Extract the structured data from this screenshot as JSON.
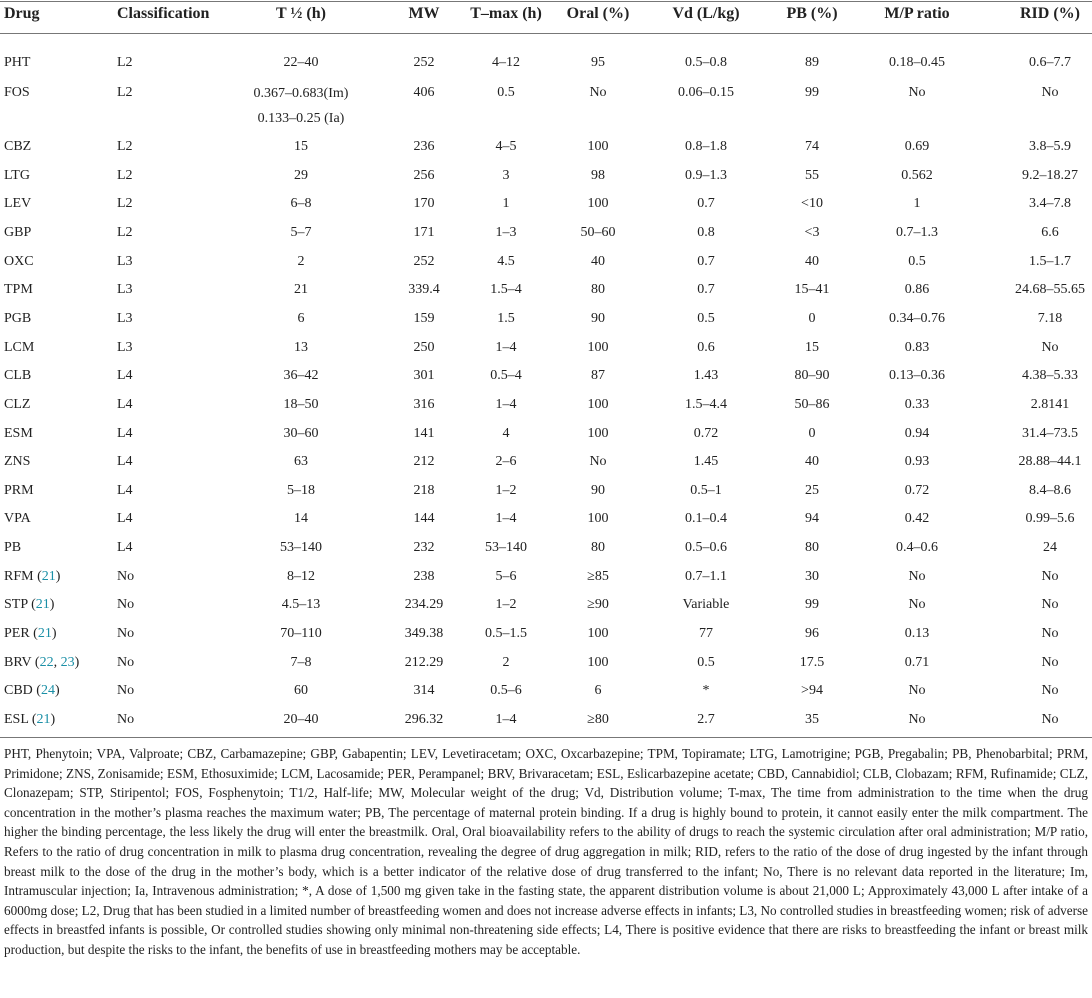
{
  "table": {
    "header": [
      "Drug",
      "Classification",
      "T ½ (h)",
      "MW",
      "T–max (h)",
      "Oral (%)",
      "Vd (L/kg)",
      "PB (%)",
      "M/P ratio",
      "RID (%)"
    ],
    "rows": [
      [
        "PHT",
        "L2",
        "22–40",
        "252",
        "4–12",
        "95",
        "0.5–0.8",
        "89",
        "0.18–0.45",
        "0.6–7.7"
      ],
      [
        "FOS",
        "L2",
        {
          "lines": [
            "0.367–0.683(Im)",
            "0.133–0.25 (Ia)"
          ]
        },
        "406",
        "0.5",
        "No",
        "0.06–0.15",
        "99",
        "No",
        "No"
      ],
      [
        "CBZ",
        "L2",
        "15",
        "236",
        "4–5",
        "100",
        "0.8–1.8",
        "74",
        "0.69",
        "3.8–5.9"
      ],
      [
        "LTG",
        "L2",
        "29",
        "256",
        "3",
        "98",
        "0.9–1.3",
        "55",
        "0.562",
        "9.2–18.27"
      ],
      [
        "LEV",
        "L2",
        "6–8",
        "170",
        "1",
        "100",
        "0.7",
        "<10",
        "1",
        "3.4–7.8"
      ],
      [
        "GBP",
        "L2",
        "5–7",
        "171",
        "1–3",
        "50–60",
        "0.8",
        "<3",
        "0.7–1.3",
        "6.6"
      ],
      [
        "OXC",
        "L3",
        "2",
        "252",
        "4.5",
        "40",
        "0.7",
        "40",
        "0.5",
        "1.5–1.7"
      ],
      [
        "TPM",
        "L3",
        "21",
        "339.4",
        "1.5–4",
        "80",
        "0.7",
        "15–41",
        "0.86",
        "24.68–55.65"
      ],
      [
        "PGB",
        "L3",
        "6",
        "159",
        "1.5",
        "90",
        "0.5",
        "0",
        "0.34–0.76",
        "7.18"
      ],
      [
        "LCM",
        "L3",
        "13",
        "250",
        "1–4",
        "100",
        "0.6",
        "15",
        "0.83",
        "No"
      ],
      [
        "CLB",
        "L4",
        "36–42",
        "301",
        "0.5–4",
        "87",
        "1.43",
        "80–90",
        "0.13–0.36",
        "4.38–5.33"
      ],
      [
        "CLZ",
        "L4",
        "18–50",
        "316",
        "1–4",
        "100",
        "1.5–4.4",
        "50–86",
        "0.33",
        "2.8141"
      ],
      [
        "ESM",
        "L4",
        "30–60",
        "141",
        "4",
        "100",
        "0.72",
        "0",
        "0.94",
        "31.4–73.5"
      ],
      [
        "ZNS",
        "L4",
        "63",
        "212",
        "2–6",
        "No",
        "1.45",
        "40",
        "0.93",
        "28.88–44.1"
      ],
      [
        "PRM",
        "L4",
        "5–18",
        "218",
        "1–2",
        "90",
        "0.5–1",
        "25",
        "0.72",
        "8.4–8.6"
      ],
      [
        "VPA",
        "L4",
        "14",
        "144",
        "1–4",
        "100",
        "0.1–0.4",
        "94",
        "0.42",
        "0.99–5.6"
      ],
      [
        "PB",
        "L4",
        "53–140",
        "232",
        "53–140",
        "80",
        "0.5–0.6",
        "80",
        "0.4–0.6",
        "24"
      ],
      [
        {
          "parts": [
            "RFM (",
            "21",
            ")"
          ]
        },
        "No",
        "8–12",
        "238",
        "5–6",
        "≥85",
        "0.7–1.1",
        "30",
        "No",
        "No"
      ],
      [
        {
          "parts": [
            "STP (",
            "21",
            ")"
          ]
        },
        "No",
        "4.5–13",
        "234.29",
        "1–2",
        "≥90",
        "Variable",
        "99",
        "No",
        "No"
      ],
      [
        {
          "parts": [
            "PER (",
            "21",
            ")"
          ]
        },
        "No",
        "70–110",
        "349.38",
        "0.5–1.5",
        "100",
        "77",
        "96",
        "0.13",
        "No"
      ],
      [
        {
          "parts": [
            "BRV (",
            "22",
            ", ",
            "23",
            ")"
          ]
        },
        "No",
        "7–8",
        "212.29",
        "2",
        "100",
        "0.5",
        "17.5",
        "0.71",
        "No"
      ],
      [
        {
          "parts": [
            "CBD (",
            "24",
            ")"
          ]
        },
        "No",
        "60",
        "314",
        "0.5–6",
        "6",
        "*",
        ">94",
        "No",
        "No"
      ],
      [
        {
          "parts": [
            "ESL (",
            "21",
            ")"
          ]
        },
        "No",
        "20–40",
        "296.32",
        "1–4",
        "≥80",
        "2.7",
        "35",
        "No",
        "No"
      ]
    ],
    "footnote": "PHT, Phenytoin; VPA, Valproate; CBZ, Carbamazepine; GBP, Gabapentin; LEV, Levetiracetam; OXC, Oxcarbazepine; TPM, Topiramate; LTG, Lamotrigine; PGB, Pregabalin; PB, Phenobarbital; PRM, Primidone; ZNS, Zonisamide; ESM, Ethosuximide; LCM, Lacosamide; PER, Perampanel; BRV, Brivaracetam; ESL, Eslicarbazepine acetate; CBD, Cannabidiol; CLB, Clobazam; RFM, Rufinamide; CLZ, Clonazepam; STP, Stiripentol; FOS, Fosphenytoin; T1/2, Half-life; MW, Molecular weight of the drug; Vd, Distribution volume; T-max, The time from administration to the time when the drug concentration in the mother’s plasma reaches the maximum water; PB, The percentage of maternal protein binding. If a drug is highly bound to protein, it cannot easily enter the milk compartment. The higher the binding percentage, the less likely the drug will enter the breastmilk. Oral, Oral bioavailability refers to the ability of drugs to reach the systemic circulation after oral administration; M/P ratio, Refers to the ratio of drug concentration in milk to plasma drug concentration, revealing the degree of drug aggregation in milk; RID, refers to the ratio of the dose of drug ingested by the infant through breast milk to the dose of the drug in the mother’s body, which is a better indicator of the relative dose of drug transferred to the infant; No, There is no relevant data reported in the literature; Im, Intramuscular injection; Ia, Intravenous administration; *, A dose of 1,500 mg given take in the fasting state, the apparent distribution volume is about 21,000 L; Approximately 43,000 L after intake of a 6000mg dose; L2, Drug that has been studied in a limited number of breastfeeding women and does not increase adverse effects in infants; L3, No controlled studies in breastfeeding women; risk of adverse effects in breastfed infants is possible, Or controlled studies showing only minimal non-threatening side effects; L4, There is positive evidence that there are risks to breastfeeding the infant or breast milk production, but despite the risks to the infant, the benefits of use in breastfeeding mothers may be acceptable."
  }
}
